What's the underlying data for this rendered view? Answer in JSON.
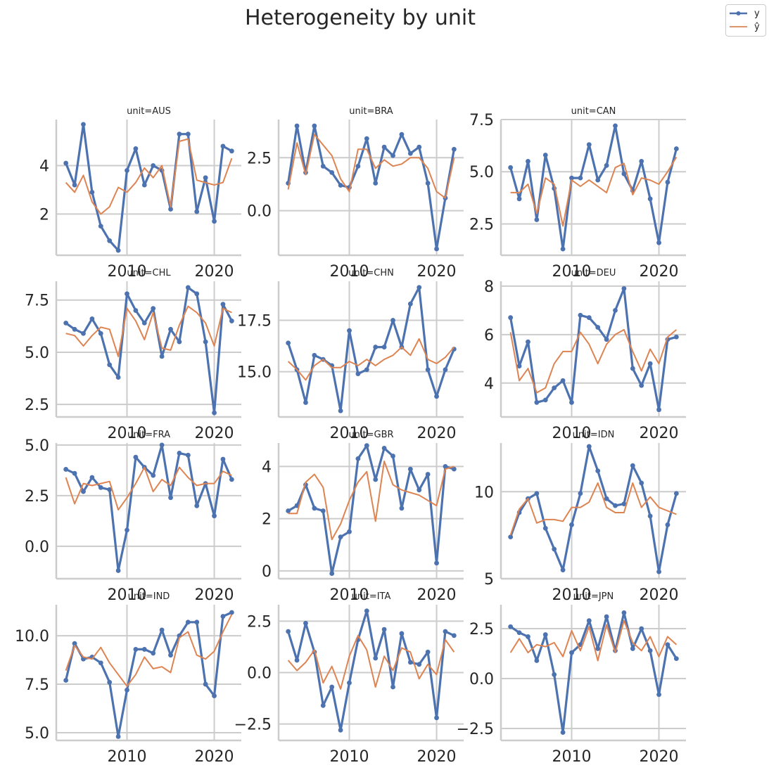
{
  "figure": {
    "title": "Heterogeneity by unit"
  },
  "legend": [
    {
      "label": "y",
      "color": "#4c72b0",
      "marker": "circle"
    },
    {
      "label": "ŷ",
      "color": "#dd8452",
      "marker": "none"
    }
  ],
  "chart_data": [
    {
      "type": "line",
      "title": "unit=AUS",
      "x": [
        2003,
        2004,
        2005,
        2006,
        2007,
        2008,
        2009,
        2010,
        2011,
        2012,
        2013,
        2014,
        2015,
        2016,
        2017,
        2018,
        2019,
        2020,
        2021,
        2022
      ],
      "xticks": [
        2010,
        2020
      ],
      "xlim": [
        2001.9,
        2023.1
      ],
      "ylim": [
        0.3,
        5.9
      ],
      "yticks": [
        2,
        4
      ],
      "series": [
        {
          "name": "y",
          "values": [
            4.1,
            3.2,
            5.7,
            2.9,
            1.5,
            0.9,
            0.5,
            3.8,
            4.7,
            3.2,
            4.0,
            3.8,
            2.2,
            5.3,
            5.3,
            2.1,
            3.5,
            1.7,
            4.8,
            4.6
          ]
        },
        {
          "name": "ŷ",
          "values": [
            3.3,
            2.9,
            3.6,
            2.5,
            2.0,
            2.3,
            3.1,
            2.9,
            3.3,
            3.9,
            3.5,
            4.0,
            2.3,
            5.0,
            5.1,
            3.4,
            3.3,
            3.2,
            3.3,
            4.3
          ]
        }
      ]
    },
    {
      "type": "line",
      "title": "unit=BRA",
      "x": [
        2003,
        2004,
        2005,
        2006,
        2007,
        2008,
        2009,
        2010,
        2011,
        2012,
        2013,
        2014,
        2015,
        2016,
        2017,
        2018,
        2019,
        2020,
        2021,
        2022
      ],
      "xticks": [
        2010,
        2020
      ],
      "xlim": [
        2001.9,
        2023.1
      ],
      "ylim": [
        -2.1,
        4.3
      ],
      "yticks": [
        0.0,
        2.5
      ],
      "series": [
        {
          "name": "y",
          "values": [
            1.3,
            4.0,
            1.8,
            4.0,
            2.1,
            1.8,
            1.2,
            1.1,
            2.1,
            3.4,
            1.3,
            3.0,
            2.6,
            3.6,
            2.7,
            3.0,
            1.3,
            -1.8,
            0.6,
            2.9
          ]
        },
        {
          "name": "ŷ",
          "values": [
            1.0,
            3.2,
            1.7,
            3.6,
            3.1,
            2.6,
            1.5,
            0.9,
            2.9,
            2.9,
            2.0,
            2.4,
            2.1,
            2.2,
            2.5,
            2.5,
            2.0,
            0.9,
            0.6,
            2.5
          ]
        }
      ]
    },
    {
      "type": "line",
      "title": "unit=CAN",
      "x": [
        2003,
        2004,
        2005,
        2006,
        2007,
        2008,
        2009,
        2010,
        2011,
        2012,
        2013,
        2014,
        2015,
        2016,
        2017,
        2018,
        2019,
        2020,
        2021,
        2022
      ],
      "xticks": [
        2010,
        2020
      ],
      "xlim": [
        2001.9,
        2023.1
      ],
      "ylim": [
        1.0,
        7.5
      ],
      "yticks": [
        2.5,
        5.0,
        7.5
      ],
      "series": [
        {
          "name": "y",
          "values": [
            5.2,
            3.7,
            5.5,
            2.7,
            5.8,
            4.2,
            1.3,
            4.7,
            4.7,
            6.3,
            4.6,
            5.3,
            7.2,
            4.9,
            4.1,
            5.5,
            3.7,
            1.6,
            4.5,
            6.1
          ]
        },
        {
          "name": "ŷ",
          "values": [
            4.0,
            4.0,
            4.4,
            3.0,
            4.7,
            4.4,
            2.4,
            4.6,
            4.3,
            4.6,
            4.3,
            4.0,
            5.2,
            5.4,
            3.9,
            4.7,
            4.6,
            4.4,
            5.0,
            5.7
          ]
        }
      ]
    },
    {
      "type": "line",
      "title": "unit=CHL",
      "x": [
        2003,
        2004,
        2005,
        2006,
        2007,
        2008,
        2009,
        2010,
        2011,
        2012,
        2013,
        2014,
        2015,
        2016,
        2017,
        2018,
        2019,
        2020,
        2021,
        2022
      ],
      "xticks": [
        2010,
        2020
      ],
      "xlim": [
        2001.9,
        2023.1
      ],
      "ylim": [
        1.9,
        8.4
      ],
      "yticks": [
        2.5,
        5.0,
        7.5
      ],
      "series": [
        {
          "name": "y",
          "values": [
            6.4,
            6.1,
            5.9,
            6.6,
            5.9,
            4.4,
            3.8,
            7.8,
            7.0,
            6.4,
            7.1,
            4.8,
            6.1,
            5.5,
            8.1,
            7.8,
            5.5,
            2.1,
            7.3,
            6.5
          ]
        },
        {
          "name": "ŷ",
          "values": [
            5.9,
            5.8,
            5.3,
            5.8,
            6.2,
            6.1,
            4.8,
            7.1,
            6.5,
            5.6,
            6.9,
            5.2,
            5.1,
            6.3,
            7.2,
            6.9,
            6.4,
            5.3,
            7.1,
            6.9
          ]
        }
      ]
    },
    {
      "type": "line",
      "title": "unit=CHN",
      "x": [
        2003,
        2004,
        2005,
        2006,
        2007,
        2008,
        2009,
        2010,
        2011,
        2012,
        2013,
        2014,
        2015,
        2016,
        2017,
        2018,
        2019,
        2020,
        2021,
        2022
      ],
      "xticks": [
        2010,
        2020
      ],
      "xlim": [
        2001.9,
        2023.1
      ],
      "ylim": [
        12.8,
        19.4
      ],
      "yticks": [
        15.0,
        17.5
      ],
      "series": [
        {
          "name": "y",
          "values": [
            16.4,
            15.1,
            13.5,
            15.8,
            15.6,
            15.3,
            13.1,
            17.0,
            14.9,
            15.1,
            16.2,
            16.2,
            17.5,
            16.2,
            18.3,
            19.1,
            15.1,
            13.8,
            15.1,
            16.1
          ]
        },
        {
          "name": "ŷ",
          "values": [
            15.5,
            15.1,
            14.6,
            15.3,
            15.6,
            15.2,
            15.2,
            15.5,
            15.3,
            15.6,
            15.3,
            15.6,
            15.8,
            16.2,
            15.8,
            16.6,
            15.6,
            15.4,
            15.7,
            16.2
          ]
        }
      ]
    },
    {
      "type": "line",
      "title": "unit=DEU",
      "x": [
        2003,
        2004,
        2005,
        2006,
        2007,
        2008,
        2009,
        2010,
        2011,
        2012,
        2013,
        2014,
        2015,
        2016,
        2017,
        2018,
        2019,
        2020,
        2021,
        2022
      ],
      "xticks": [
        2010,
        2020
      ],
      "xlim": [
        2001.9,
        2023.1
      ],
      "ylim": [
        2.6,
        8.2
      ],
      "yticks": [
        4,
        6,
        8
      ],
      "series": [
        {
          "name": "y",
          "values": [
            6.7,
            4.7,
            5.7,
            3.2,
            3.3,
            3.8,
            4.1,
            3.2,
            6.8,
            6.7,
            6.3,
            5.8,
            7.0,
            7.9,
            4.6,
            3.9,
            4.8,
            2.9,
            5.8,
            5.9
          ]
        },
        {
          "name": "ŷ",
          "values": [
            6.1,
            4.1,
            4.6,
            3.6,
            3.8,
            4.8,
            5.3,
            5.3,
            6.1,
            5.6,
            4.8,
            5.6,
            6.0,
            6.2,
            5.3,
            4.5,
            5.4,
            4.8,
            5.9,
            6.2
          ]
        }
      ]
    },
    {
      "type": "line",
      "title": "unit=FRA",
      "x": [
        2003,
        2004,
        2005,
        2006,
        2007,
        2008,
        2009,
        2010,
        2011,
        2012,
        2013,
        2014,
        2015,
        2016,
        2017,
        2018,
        2019,
        2020,
        2021,
        2022
      ],
      "xticks": [
        2010,
        2020
      ],
      "xlim": [
        2001.9,
        2023.1
      ],
      "ylim": [
        -1.6,
        5.1
      ],
      "yticks": [
        0.0,
        2.5,
        5.0
      ],
      "series": [
        {
          "name": "y",
          "values": [
            3.8,
            3.6,
            2.7,
            3.4,
            2.9,
            2.8,
            -1.2,
            0.8,
            4.4,
            3.9,
            3.5,
            5.0,
            2.4,
            4.6,
            4.5,
            2.0,
            3.1,
            1.5,
            4.3,
            3.3
          ]
        },
        {
          "name": "ŷ",
          "values": [
            3.4,
            2.1,
            3.1,
            3.0,
            3.1,
            3.2,
            1.8,
            2.4,
            3.1,
            3.9,
            2.7,
            3.3,
            3.0,
            3.9,
            3.4,
            3.0,
            3.1,
            3.1,
            3.7,
            3.5
          ]
        }
      ]
    },
    {
      "type": "line",
      "title": "unit=GBR",
      "x": [
        2003,
        2004,
        2005,
        2006,
        2007,
        2008,
        2009,
        2010,
        2011,
        2012,
        2013,
        2014,
        2015,
        2016,
        2017,
        2018,
        2019,
        2020,
        2021,
        2022
      ],
      "xticks": [
        2010,
        2020
      ],
      "xlim": [
        2001.9,
        2023.1
      ],
      "ylim": [
        -0.3,
        4.9
      ],
      "yticks": [
        0,
        2,
        4
      ],
      "series": [
        {
          "name": "y",
          "values": [
            2.3,
            2.5,
            3.3,
            2.4,
            2.3,
            -0.1,
            1.3,
            1.5,
            4.3,
            4.8,
            3.5,
            4.7,
            4.4,
            2.4,
            3.9,
            3.1,
            3.7,
            0.3,
            4.0,
            3.9
          ]
        },
        {
          "name": "ŷ",
          "values": [
            2.2,
            2.2,
            3.4,
            3.7,
            3.2,
            1.2,
            1.8,
            2.7,
            3.4,
            3.8,
            1.9,
            4.2,
            3.3,
            3.1,
            3.0,
            2.9,
            2.7,
            2.5,
            3.9,
            4.0
          ]
        }
      ]
    },
    {
      "type": "line",
      "title": "unit=IDN",
      "x": [
        2003,
        2004,
        2005,
        2006,
        2007,
        2008,
        2009,
        2010,
        2011,
        2012,
        2013,
        2014,
        2015,
        2016,
        2017,
        2018,
        2019,
        2020,
        2021,
        2022
      ],
      "xticks": [
        2010,
        2020
      ],
      "xlim": [
        2001.9,
        2023.1
      ],
      "ylim": [
        5.0,
        12.8
      ],
      "yticks": [
        5,
        10
      ],
      "series": [
        {
          "name": "y",
          "values": [
            7.4,
            8.8,
            9.6,
            9.9,
            7.9,
            6.7,
            5.5,
            8.1,
            9.9,
            12.6,
            11.2,
            9.6,
            9.2,
            9.3,
            11.5,
            10.5,
            8.6,
            5.4,
            8.1,
            9.9
          ]
        },
        {
          "name": "ŷ",
          "values": [
            7.5,
            9.0,
            9.6,
            8.2,
            8.4,
            8.4,
            8.3,
            9.1,
            9.1,
            9.4,
            10.5,
            9.1,
            8.8,
            8.8,
            10.5,
            9.1,
            9.7,
            9.1,
            8.9,
            8.7
          ]
        }
      ]
    },
    {
      "type": "line",
      "title": "unit=IND",
      "x": [
        2003,
        2004,
        2005,
        2006,
        2007,
        2008,
        2009,
        2010,
        2011,
        2012,
        2013,
        2014,
        2015,
        2016,
        2017,
        2018,
        2019,
        2020,
        2021,
        2022
      ],
      "xticks": [
        2010,
        2020
      ],
      "xlim": [
        2001.9,
        2023.1
      ],
      "ylim": [
        4.6,
        11.6
      ],
      "yticks": [
        5.0,
        7.5,
        10.0
      ],
      "series": [
        {
          "name": "y",
          "values": [
            7.7,
            9.6,
            8.8,
            8.9,
            8.6,
            7.6,
            4.8,
            7.2,
            9.3,
            9.3,
            9.1,
            10.3,
            9.0,
            10.0,
            10.7,
            10.7,
            7.5,
            6.9,
            11.0,
            11.2
          ]
        },
        {
          "name": "ŷ",
          "values": [
            8.2,
            9.5,
            8.9,
            8.8,
            9.4,
            8.6,
            8.0,
            7.4,
            8.0,
            8.9,
            8.3,
            8.4,
            8.1,
            9.9,
            10.2,
            9.0,
            8.8,
            9.2,
            10.2,
            11.1
          ]
        }
      ]
    },
    {
      "type": "line",
      "title": "unit=ITA",
      "x": [
        2003,
        2004,
        2005,
        2006,
        2007,
        2008,
        2009,
        2010,
        2011,
        2012,
        2013,
        2014,
        2015,
        2016,
        2017,
        2018,
        2019,
        2020,
        2021,
        2022
      ],
      "xticks": [
        2010,
        2020
      ],
      "xlim": [
        2001.9,
        2023.1
      ],
      "ylim": [
        -3.3,
        3.3
      ],
      "yticks": [
        -2.5,
        0.0,
        2.5
      ],
      "series": [
        {
          "name": "y",
          "values": [
            2.0,
            0.6,
            2.4,
            1.0,
            -1.6,
            -0.7,
            -2.8,
            -0.5,
            1.6,
            3.0,
            0.7,
            2.1,
            -0.7,
            1.9,
            0.5,
            0.4,
            1.0,
            -2.2,
            2.0,
            1.8
          ]
        },
        {
          "name": "ŷ",
          "values": [
            0.6,
            0.1,
            0.5,
            1.1,
            -0.5,
            0.3,
            -0.8,
            0.8,
            1.8,
            1.1,
            -0.7,
            0.8,
            0.1,
            1.2,
            1.0,
            -0.3,
            0.4,
            -0.1,
            1.6,
            1.0
          ]
        }
      ]
    },
    {
      "type": "line",
      "title": "unit=JPN",
      "x": [
        2003,
        2004,
        2005,
        2006,
        2007,
        2008,
        2009,
        2010,
        2011,
        2012,
        2013,
        2014,
        2015,
        2016,
        2017,
        2018,
        2019,
        2020,
        2021,
        2022
      ],
      "xticks": [
        2010,
        2020
      ],
      "xlim": [
        2001.9,
        2023.1
      ],
      "ylim": [
        -3.1,
        3.7
      ],
      "yticks": [
        -2.5,
        0.0,
        2.5
      ],
      "series": [
        {
          "name": "y",
          "values": [
            2.6,
            2.3,
            2.1,
            0.9,
            2.2,
            0.2,
            -2.7,
            1.3,
            1.7,
            2.9,
            1.5,
            3.1,
            1.4,
            3.3,
            1.5,
            2.5,
            1.4,
            -0.8,
            1.7,
            1.0
          ]
        },
        {
          "name": "ŷ",
          "values": [
            1.3,
            2.0,
            1.3,
            1.7,
            1.6,
            1.8,
            1.1,
            2.4,
            1.4,
            2.6,
            0.9,
            2.7,
            1.3,
            2.9,
            1.8,
            1.4,
            2.1,
            1.1,
            2.1,
            1.7
          ]
        }
      ]
    }
  ]
}
